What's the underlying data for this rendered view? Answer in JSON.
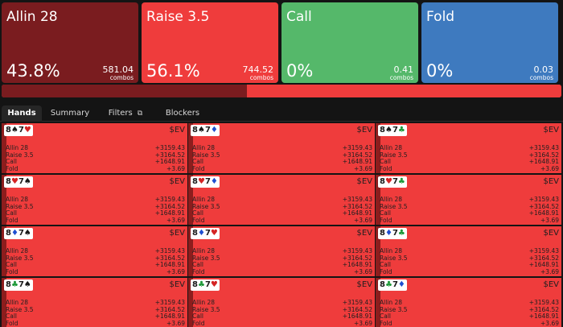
{
  "actions": [
    {
      "name": "Allin 28",
      "pct": "43.8%",
      "combos": "581.04",
      "combos_label": "combos",
      "color": "#7a1c1f"
    },
    {
      "name": "Raise 3.5",
      "pct": "56.1%",
      "combos": "744.52",
      "combos_label": "combos",
      "color": "#ef3c3c"
    },
    {
      "name": "Call",
      "pct": "0%",
      "combos": "0.41",
      "combos_label": "combos",
      "color": "#55b86a"
    },
    {
      "name": "Fold",
      "pct": "0%",
      "combos": "0.03",
      "combos_label": "combos",
      "color": "#3e7abf"
    }
  ],
  "frequency_bar": [
    {
      "action": "Allin 28",
      "fraction": 0.438,
      "color": "#7a1c1f"
    },
    {
      "action": "Raise 3.5",
      "fraction": 0.561,
      "color": "#ef3c3c"
    }
  ],
  "tabs": [
    {
      "label": "Hands",
      "active": true
    },
    {
      "label": "Summary",
      "active": false
    },
    {
      "label": "Filters",
      "active": false,
      "icon": "copy-icon"
    },
    {
      "label": "Blockers",
      "active": false
    }
  ],
  "ev_label": "$EV",
  "row_labels": [
    "Allin 28",
    "Raise 3.5",
    "Call",
    "Fold"
  ],
  "row_values": [
    "+3159.43",
    "+3164.52",
    "+1648.91",
    "+3.69"
  ],
  "hands": [
    {
      "rank1": "8",
      "suit1": "♠",
      "color1": "#1a1a1a",
      "rank2": "7",
      "suit2": "♥",
      "color2": "#d42424"
    },
    {
      "rank1": "8",
      "suit1": "♠",
      "color1": "#1a1a1a",
      "rank2": "7",
      "suit2": "♦",
      "color2": "#1f4fd1"
    },
    {
      "rank1": "8",
      "suit1": "♠",
      "color1": "#1a1a1a",
      "rank2": "7",
      "suit2": "♣",
      "color2": "#1f9a3a"
    },
    {
      "rank1": "8",
      "suit1": "♥",
      "color1": "#d42424",
      "rank2": "7",
      "suit2": "♠",
      "color2": "#1a1a1a"
    },
    {
      "rank1": "8",
      "suit1": "♥",
      "color1": "#d42424",
      "rank2": "7",
      "suit2": "♦",
      "color2": "#1f4fd1"
    },
    {
      "rank1": "8",
      "suit1": "♥",
      "color1": "#d42424",
      "rank2": "7",
      "suit2": "♣",
      "color2": "#1f9a3a"
    },
    {
      "rank1": "8",
      "suit1": "♦",
      "color1": "#1f4fd1",
      "rank2": "7",
      "suit2": "♠",
      "color2": "#1a1a1a"
    },
    {
      "rank1": "8",
      "suit1": "♦",
      "color1": "#1f4fd1",
      "rank2": "7",
      "suit2": "♥",
      "color2": "#d42424"
    },
    {
      "rank1": "8",
      "suit1": "♦",
      "color1": "#1f4fd1",
      "rank2": "7",
      "suit2": "♣",
      "color2": "#1f9a3a"
    },
    {
      "rank1": "8",
      "suit1": "♣",
      "color1": "#1f9a3a",
      "rank2": "7",
      "suit2": "♠",
      "color2": "#1a1a1a"
    },
    {
      "rank1": "8",
      "suit1": "♣",
      "color1": "#1f9a3a",
      "rank2": "7",
      "suit2": "♥",
      "color2": "#d42424"
    },
    {
      "rank1": "8",
      "suit1": "♣",
      "color1": "#1f9a3a",
      "rank2": "7",
      "suit2": "♦",
      "color2": "#1f4fd1"
    }
  ]
}
